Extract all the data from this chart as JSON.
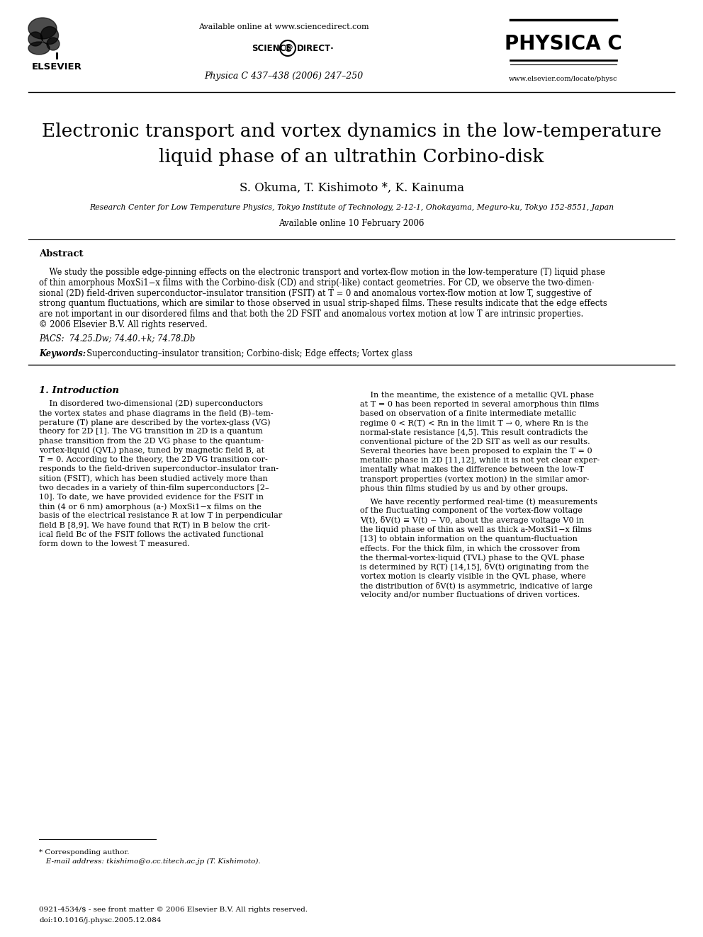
{
  "bg_color": "#ffffff",
  "header": {
    "available_online": "Available online at www.sciencedirect.com",
    "journal_info": "Physica C 437–438 (2006) 247–250",
    "physica_c": "PHYSICA C",
    "website": "www.elsevier.com/locate/physc",
    "elsevier": "ELSEVIER"
  },
  "title_line1": "Electronic transport and vortex dynamics in the low-temperature",
  "title_line2": "liquid phase of an ultrathin Corbino-disk",
  "authors": "S. Okuma, T. Kishimoto *, K. Kainuma",
  "affiliation": "Research Center for Low Temperature Physics, Tokyo Institute of Technology, 2-12-1, Ohokayama, Meguro-ku, Tokyo 152-8551, Japan",
  "available_online_date": "Available online 10 February 2006",
  "abstract_title": "Abstract",
  "abstract_text": [
    "    We study the possible edge-pinning effects on the electronic transport and vortex-flow motion in the low-temperature (T) liquid phase",
    "of thin amorphous MoxSi1−x films with the Corbino-disk (CD) and strip(-like) contact geometries. For CD, we observe the two-dimen-",
    "sional (2D) field-driven superconductor–insulator transition (FSIT) at T = 0 and anomalous vortex-flow motion at low T, suggestive of",
    "strong quantum fluctuations, which are similar to those observed in usual strip-shaped films. These results indicate that the edge effects",
    "are not important in our disordered films and that both the 2D FSIT and anomalous vortex motion at low T are intrinsic properties.",
    "© 2006 Elsevier B.V. All rights reserved."
  ],
  "pacs": "PACS:  74.25.Dw; 74.40.+k; 74.78.Db",
  "keywords_label": "Keywords:",
  "keywords_text": "  Superconducting–insulator transition; Corbino-disk; Edge effects; Vortex glass",
  "section1_title": "1. Introduction",
  "col1_lines": [
    "    In disordered two-dimensional (2D) superconductors",
    "the vortex states and phase diagrams in the field (B)–tem-",
    "perature (T) plane are described by the vortex-glass (VG)",
    "theory for 2D [1]. The VG transition in 2D is a quantum",
    "phase transition from the 2D VG phase to the quantum-",
    "vortex-liquid (QVL) phase, tuned by magnetic field B, at",
    "T = 0. According to the theory, the 2D VG transition cor-",
    "responds to the field-driven superconductor–insulator tran-",
    "sition (FSIT), which has been studied actively more than",
    "two decades in a variety of thin-film superconductors [2–",
    "10]. To date, we have provided evidence for the FSIT in",
    "thin (4 or 6 nm) amorphous (a-) MoxSi1−x films on the",
    "basis of the electrical resistance R at low T in perpendicular",
    "field B [8,9]. We have found that R(T) in B below the crit-",
    "ical field Bc of the FSIT follows the activated functional",
    "form down to the lowest T measured."
  ],
  "col2_lines_p1": [
    "    In the meantime, the existence of a metallic QVL phase",
    "at T = 0 has been reported in several amorphous thin films",
    "based on observation of a finite intermediate metallic",
    "regime 0 < R(T) < Rn in the limit T → 0, where Rn is the",
    "normal-state resistance [4,5]. This result contradicts the",
    "conventional picture of the 2D SIT as well as our results.",
    "Several theories have been proposed to explain the T = 0",
    "metallic phase in 2D [11,12], while it is not yet clear exper-",
    "imentally what makes the difference between the low-T",
    "transport properties (vortex motion) in the similar amor-",
    "phous thin films studied by us and by other groups."
  ],
  "col2_lines_p2": [
    "    We have recently performed real-time (t) measurements",
    "of the fluctuating component of the vortex-flow voltage",
    "V(t), δV(t) ≡ V(t) − V0, about the average voltage V0 in",
    "the liquid phase of thin as well as thick a-MoxSi1−x films",
    "[13] to obtain information on the quantum-fluctuation",
    "effects. For the thick film, in which the crossover from",
    "the thermal-vortex-liquid (TVL) phase to the QVL phase",
    "is determined by R(T) [14,15], δV(t) originating from the",
    "vortex motion is clearly visible in the QVL phase, where",
    "the distribution of δV(t) is asymmetric, indicative of large",
    "velocity and/or number fluctuations of driven vortices."
  ],
  "footnote_star": "* Corresponding author.",
  "footnote_email": "   E-mail address: tkishimo@o.cc.titech.ac.jp (T. Kishimoto).",
  "footer_line1": "0921-4534/$ - see front matter © 2006 Elsevier B.V. All rights reserved.",
  "footer_line2": "doi:10.1016/j.physc.2005.12.084"
}
